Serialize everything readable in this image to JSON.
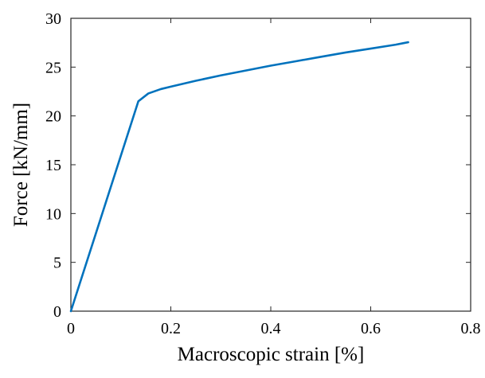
{
  "chart_data": {
    "type": "line",
    "title": "",
    "xlabel": "Macroscopic strain [%]",
    "ylabel": "Force [kN/mm]",
    "xlim": [
      0,
      0.8
    ],
    "ylim": [
      0,
      30
    ],
    "xticks": [
      0,
      0.2,
      0.4,
      0.6,
      0.8
    ],
    "xtick_labels": [
      "0",
      "0.2",
      "0.4",
      "0.6",
      "0.8"
    ],
    "yticks": [
      0,
      5,
      10,
      15,
      20,
      25,
      30
    ],
    "ytick_labels": [
      "0",
      "5",
      "10",
      "15",
      "20",
      "25",
      "30"
    ],
    "grid": false,
    "legend": "none",
    "series": [
      {
        "color": "#0072BD",
        "x": [
          0,
          0.135,
          0.155,
          0.18,
          0.2,
          0.25,
          0.3,
          0.35,
          0.4,
          0.45,
          0.5,
          0.55,
          0.6,
          0.65,
          0.675
        ],
        "y": [
          0,
          21.5,
          22.3,
          22.75,
          23.0,
          23.6,
          24.15,
          24.65,
          25.15,
          25.6,
          26.05,
          26.5,
          26.9,
          27.3,
          27.55
        ]
      }
    ]
  }
}
